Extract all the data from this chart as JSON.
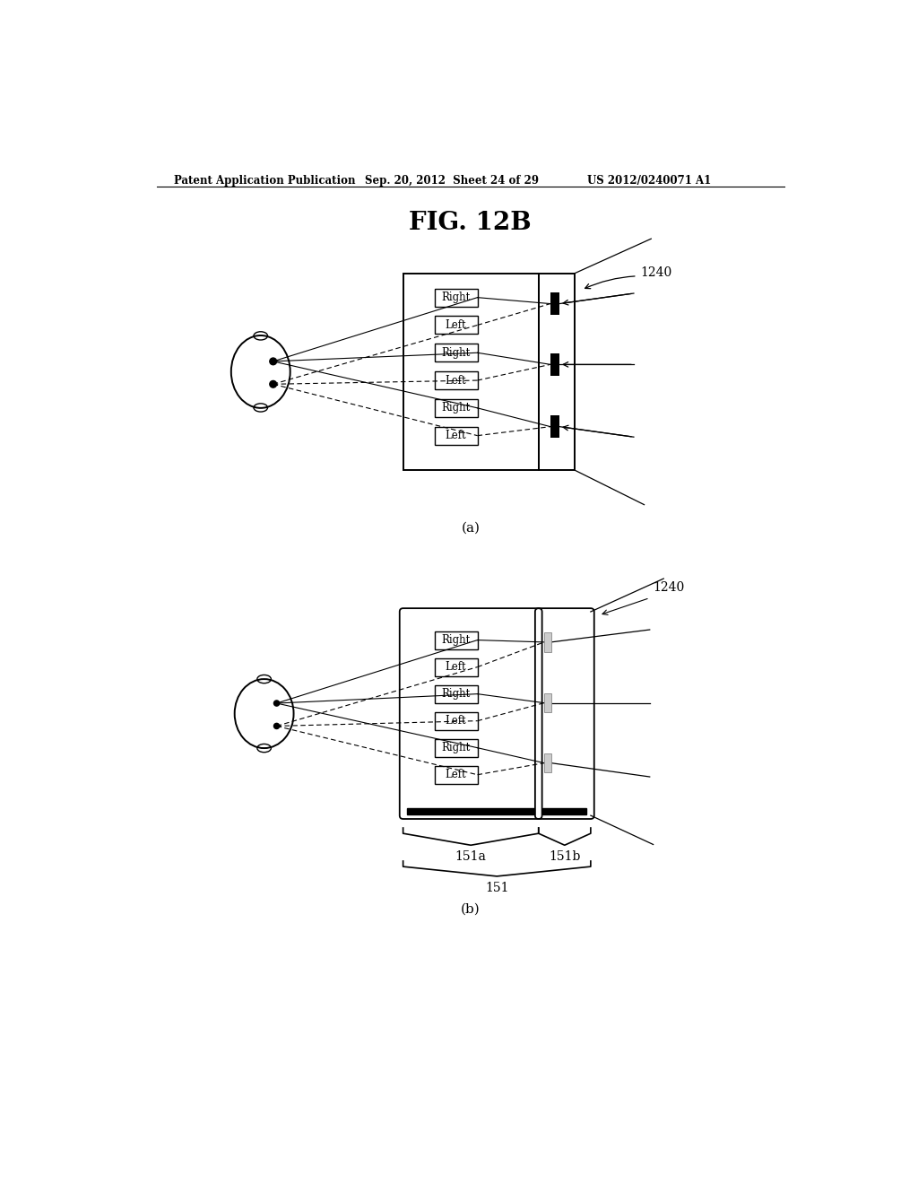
{
  "title": "FIG. 12B",
  "header_left": "Patent Application Publication",
  "header_mid": "Sep. 20, 2012  Sheet 24 of 29",
  "header_right": "US 2012/0240071 A1",
  "label_a": "(a)",
  "label_b": "(b)",
  "label_1240_a": "1240",
  "label_1240_b": "1240",
  "label_151a": "151a",
  "label_151b": "151b",
  "label_151": "151",
  "bg_color": "#ffffff",
  "line_color": "#000000",
  "text_color": "#000000",
  "box_labels": [
    "Right",
    "Left",
    "Right",
    "Left",
    "Right",
    "Left"
  ]
}
